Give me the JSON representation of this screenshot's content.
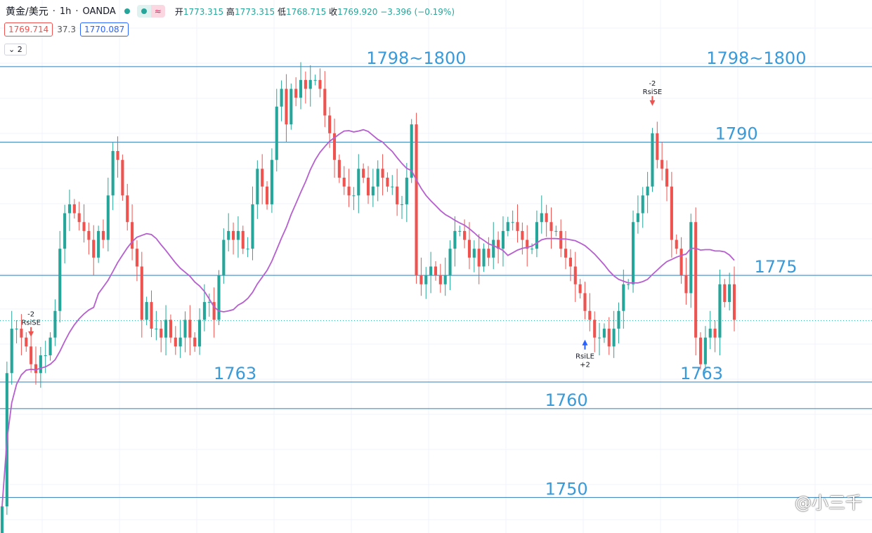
{
  "header": {
    "symbol": "黄金/美元",
    "interval": "1h",
    "broker": "OANDA",
    "open_label": "开",
    "open": "1773.315",
    "high_label": "高",
    "high": "1773.315",
    "low_label": "低",
    "low": "1768.715",
    "close_label": "收",
    "close": "1769.920",
    "change": "−3.396 (−0.19%)",
    "bid": "1769.714",
    "spread": "37.3",
    "ask": "1770.087",
    "indicator_toggle": "2",
    "colors": {
      "up": "#26a69a",
      "down": "#ef5350",
      "ma": "#b65fcf",
      "level": "#2f7fb7",
      "label": "#3a9ad9"
    }
  },
  "watermark": "@小三千",
  "chart_data": {
    "type": "candlestick",
    "price_range": [
      1746,
      1806
    ],
    "levels": [
      {
        "price": 1798.5,
        "label": "1798~1800",
        "label_x": 0.42
      },
      {
        "price": 1798.5,
        "label": "1798~1800",
        "label_x": 0.81
      },
      {
        "price": 1790,
        "label": "1790",
        "label_x": 0.82
      },
      {
        "price": 1775,
        "label": "1775",
        "label_x": 0.865
      },
      {
        "price": 1763,
        "label": "1763",
        "label_x": 0.245
      },
      {
        "price": 1763,
        "label": "1763",
        "label_x": 0.78
      },
      {
        "price": 1760,
        "label": "1760",
        "label_x": 0.625
      },
      {
        "price": 1750,
        "label": "1750",
        "label_x": 0.625
      }
    ],
    "current_price": 1769.9,
    "signals": [
      {
        "type": "RsiSE",
        "count": "-2",
        "bar": 6,
        "dir": "down"
      },
      {
        "type": "RsiLE",
        "count": "+2",
        "bar": 121,
        "dir": "up"
      },
      {
        "type": "RsiSE",
        "count": "-2",
        "bar": 135,
        "dir": "down"
      }
    ],
    "closes": [
      1749,
      1764,
      1769,
      1769,
      1768,
      1767,
      1765,
      1764,
      1766,
      1766,
      1768,
      1771,
      1778,
      1782,
      1783,
      1782,
      1781,
      1780,
      1779,
      1777,
      1780,
      1779,
      1784,
      1789,
      1788,
      1784,
      1781,
      1778,
      1776,
      1770,
      1772,
      1769,
      1769,
      1768,
      1770,
      1768,
      1767,
      1768,
      1770,
      1768,
      1767,
      1770,
      1772,
      1772,
      1770,
      1775,
      1779,
      1780,
      1779,
      1780,
      1778,
      1778,
      1783,
      1787,
      1785,
      1783,
      1788,
      1794,
      1796,
      1792,
      1796,
      1795,
      1797,
      1796,
      1797,
      1797,
      1796,
      1793,
      1791,
      1788,
      1786,
      1785,
      1784,
      1784,
      1787,
      1786,
      1784,
      1785,
      1787,
      1786,
      1785,
      1785,
      1783,
      1783,
      1786,
      1792,
      1775,
      1774,
      1775,
      1776,
      1775,
      1774,
      1775,
      1778,
      1780,
      1780,
      1779,
      1777,
      1778,
      1776,
      1778,
      1777,
      1779,
      1778,
      1780,
      1781,
      1781,
      1780,
      1779,
      1778,
      1778,
      1781,
      1782,
      1781,
      1780,
      1780,
      1778,
      1777,
      1776,
      1774,
      1773,
      1771,
      1770,
      1768,
      1768,
      1769,
      1767,
      1769,
      1771,
      1774,
      1774,
      1781,
      1782,
      1784,
      1785,
      1791,
      1788,
      1787,
      1785,
      1779,
      1778,
      1775,
      1773,
      1781,
      1768,
      1765,
      1768,
      1769,
      1768,
      1774,
      1772,
      1774,
      1770
    ]
  }
}
